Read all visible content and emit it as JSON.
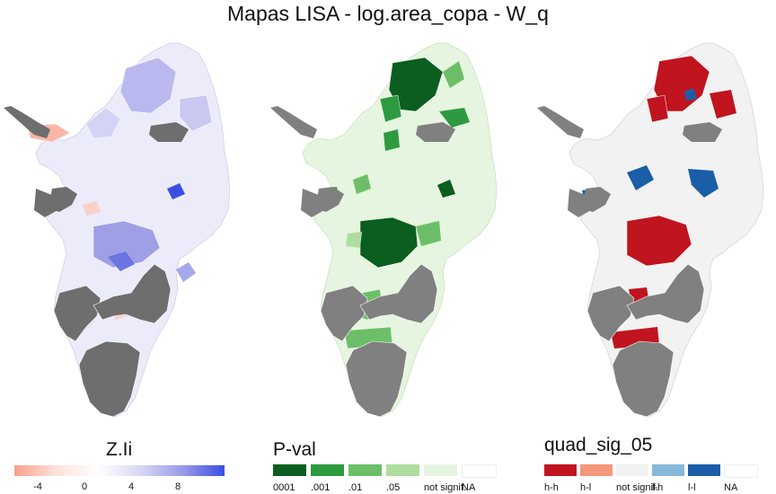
{
  "title": "Mapas LISA - log.area_copa - W_q",
  "panels": [
    {
      "legend_title": "Z.Ii",
      "legend_type": "continuous",
      "gradient": [
        "#f8a08a",
        "#fde2dc",
        "#ffffff",
        "#d8d8f6",
        "#9a9ae8",
        "#3a4fe0"
      ],
      "range": [
        -6,
        12
      ],
      "tick_labels": [
        "-4",
        "0",
        "4",
        "8"
      ],
      "tick_values": [
        -4,
        0,
        4,
        8
      ],
      "na_color": "#6e6e6e"
    },
    {
      "legend_title": "P-val",
      "legend_type": "categorical",
      "categories": [
        {
          "label": "0001",
          "color": "#0b5e1f"
        },
        {
          "label": ".001",
          "color": "#2e9a40"
        },
        {
          "label": ".01",
          "color": "#6cbf68"
        },
        {
          "label": ".05",
          "color": "#aede9f"
        },
        {
          "label": "not signif.",
          "color": "#e6f5df"
        },
        {
          "label": "NA",
          "color": "#ffffff"
        }
      ],
      "na_color": "#808080"
    },
    {
      "legend_title": "quad_sig_05",
      "legend_type": "categorical",
      "categories": [
        {
          "label": "h-h",
          "color": "#c0141f"
        },
        {
          "label": "h-l",
          "color": "#f4977a"
        },
        {
          "label": "not signif.",
          "color": "#f2f2f2"
        },
        {
          "label": "l-h",
          "color": "#86b8da"
        },
        {
          "label": "l-l",
          "color": "#1a5ea8"
        },
        {
          "label": "NA",
          "color": "#ffffff"
        }
      ],
      "na_color": "#808080"
    }
  ]
}
